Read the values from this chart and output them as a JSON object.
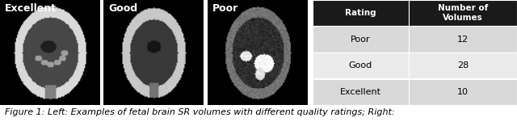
{
  "table_headers": [
    "Rating",
    "Number of\nVolumes"
  ],
  "table_rows": [
    [
      "Poor",
      "12"
    ],
    [
      "Good",
      "28"
    ],
    [
      "Excellent",
      "10"
    ]
  ],
  "image_labels": [
    "Excellent",
    "Good",
    "Poor"
  ],
  "header_bg": "#1a1a1a",
  "header_fg": "#ffffff",
  "row_bg_odd": "#d9d9d9",
  "row_bg_even": "#ebebeb",
  "caption": "Figure 1: Left: Examples of fetal brain SR volumes with different quality ratings; Right:",
  "caption_fontsize": 8,
  "images_bg": "#000000",
  "label_color": "#ffffff",
  "label_fontsize": 9
}
